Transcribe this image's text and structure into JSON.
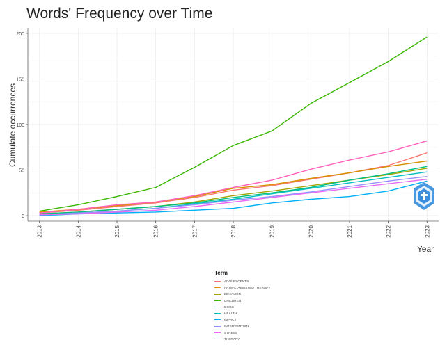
{
  "chart_data": {
    "type": "line",
    "title": "Words' Frequency over Time",
    "xlabel": "Year",
    "ylabel": "Cumulate occurrences",
    "x": [
      2013,
      2014,
      2015,
      2016,
      2017,
      2018,
      2019,
      2020,
      2021,
      2022,
      2023
    ],
    "ylim": [
      -6,
      206
    ],
    "yticks": [
      0,
      50,
      100,
      150,
      200
    ],
    "grid": true,
    "legend_title": "Term",
    "legend_position": "bottom",
    "series": [
      {
        "name": "ADOLESCENTS",
        "color": "#F8766D",
        "values": [
          3,
          6,
          10,
          14,
          20,
          28,
          33,
          40,
          47,
          55,
          69
        ]
      },
      {
        "name": "ANIMAL-ASSISTED THERAPY",
        "color": "#D89000",
        "values": [
          4,
          7,
          11,
          15,
          21,
          30,
          34,
          41,
          47,
          54,
          60
        ]
      },
      {
        "name": "BEHAVIOR",
        "color": "#A3A500",
        "values": [
          2,
          4,
          7,
          10,
          15,
          22,
          27,
          33,
          39,
          45,
          52
        ]
      },
      {
        "name": "CHILDREN",
        "color": "#39B600",
        "values": [
          5,
          12,
          21,
          31,
          53,
          77,
          93,
          123,
          146,
          169,
          196
        ]
      },
      {
        "name": "DOGS",
        "color": "#00BF7D",
        "values": [
          2,
          4,
          7,
          10,
          14,
          20,
          25,
          31,
          39,
          46,
          54
        ]
      },
      {
        "name": "HEALTH",
        "color": "#00BFC4",
        "values": [
          1,
          3,
          5,
          8,
          13,
          18,
          24,
          30,
          36,
          42,
          48
        ]
      },
      {
        "name": "IMPACT",
        "color": "#00B0F6",
        "values": [
          0,
          2,
          3,
          4,
          6,
          8,
          14,
          18,
          21,
          27,
          38
        ]
      },
      {
        "name": "INTERVENTION",
        "color": "#9590FF",
        "values": [
          1,
          3,
          5,
          8,
          12,
          17,
          21,
          26,
          32,
          38,
          43
        ]
      },
      {
        "name": "STRESS",
        "color": "#E76BF3",
        "values": [
          1,
          2,
          4,
          6,
          10,
          15,
          20,
          25,
          30,
          35,
          40
        ]
      },
      {
        "name": "THERAPY",
        "color": "#FF62BC",
        "values": [
          3,
          7,
          12,
          15,
          22,
          31,
          39,
          51,
          61,
          70,
          82
        ]
      }
    ]
  }
}
